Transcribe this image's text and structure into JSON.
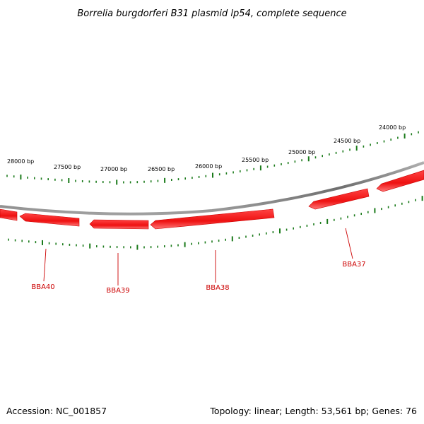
{
  "title": "Borrelia burgdorferi B31 plasmid lp54, complete sequence",
  "accession": "Accession: NC_001857",
  "summary": "Topology: linear; Length: 53,561 bp; Genes: 76",
  "colors": {
    "backbone": "#8a8a8a",
    "gene": "#ee1111",
    "gene_highlight": "#ff6666",
    "tick": "#1a7a1a",
    "gene_label": "#cc0000"
  },
  "scale_labels": [
    "28000 bp",
    "27500 bp",
    "27000 bp",
    "26500 bp",
    "26000 bp",
    "25500 bp",
    "25000 bp",
    "24500 bp",
    "24000 bp"
  ],
  "genes": [
    {
      "name": "BBA40"
    },
    {
      "name": "BBA39"
    },
    {
      "name": "BBA38"
    },
    {
      "name": "BBA37"
    }
  ]
}
